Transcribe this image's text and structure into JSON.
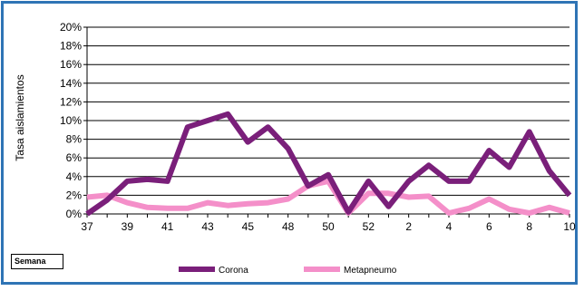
{
  "chart_data": {
    "type": "line",
    "ylabel": "Tasa aislamientos",
    "xlabel": "Semana",
    "ylim": [
      0,
      20
    ],
    "y_ticks": [
      "0%",
      "2%",
      "4%",
      "6%",
      "8%",
      "10%",
      "12%",
      "14%",
      "16%",
      "18%",
      "20%"
    ],
    "x_ticks": [
      "37",
      "39",
      "41",
      "43",
      "45",
      "48",
      "50",
      "52",
      "2",
      "4",
      "6",
      "8",
      "10"
    ],
    "legend_position": "bottom",
    "series": [
      {
        "name": "Corona",
        "color": "#7a1f7a",
        "values": [
          0,
          1.5,
          3.5,
          3.7,
          3.5,
          9.3,
          10.0,
          10.7,
          7.7,
          9.3,
          7.0,
          3.0,
          4.2,
          0.2,
          3.5,
          0.8,
          3.5,
          5.2,
          3.5,
          3.5,
          6.8,
          5.0,
          8.8,
          4.6,
          2.0
        ]
      },
      {
        "name": "Metapneumo",
        "color": "#f48fc9",
        "values": [
          1.8,
          2.0,
          1.2,
          0.7,
          0.6,
          0.6,
          1.2,
          0.9,
          1.1,
          1.2,
          1.6,
          3.0,
          3.5,
          0.1,
          2.2,
          2.2,
          1.8,
          1.9,
          0.1,
          0.6,
          1.6,
          0.5,
          0.1,
          0.7,
          0.1
        ]
      }
    ]
  }
}
